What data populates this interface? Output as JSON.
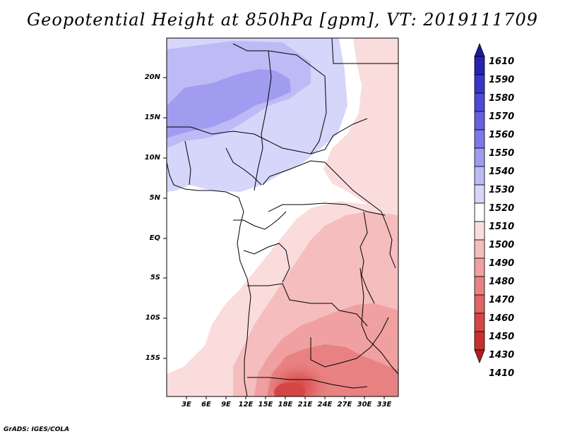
{
  "title": "Geopotential Height at 850hPa [gpm], VT: 2019111709",
  "footer": "GrADS: IGES/COLA",
  "map": {
    "lat_labels": [
      "20N",
      "15N",
      "10N",
      "5N",
      "EQ",
      "5S",
      "10S",
      "15S"
    ],
    "lon_labels": [
      "3E",
      "6E",
      "9E",
      "12E",
      "15E",
      "18E",
      "21E",
      "24E",
      "27E",
      "30E",
      "33E"
    ]
  },
  "colorbar": {
    "labels": [
      "1610",
      "1590",
      "1580",
      "1570",
      "1560",
      "1550",
      "1540",
      "1530",
      "1520",
      "1510",
      "1500",
      "1490",
      "1480",
      "1470",
      "1460",
      "1450",
      "1430",
      "1410"
    ],
    "colors": [
      "#1e1a9c",
      "#2622b4",
      "#3a35c8",
      "#4e49d6",
      "#6560e0",
      "#7d78e8",
      "#a09cf0",
      "#bdbaf5",
      "#d6d5fa",
      "#ffffff",
      "#fadcdc",
      "#f5bdbd",
      "#f0a0a0",
      "#e88282",
      "#e06464",
      "#d64545",
      "#c83030",
      "#b41e1e"
    ]
  }
}
